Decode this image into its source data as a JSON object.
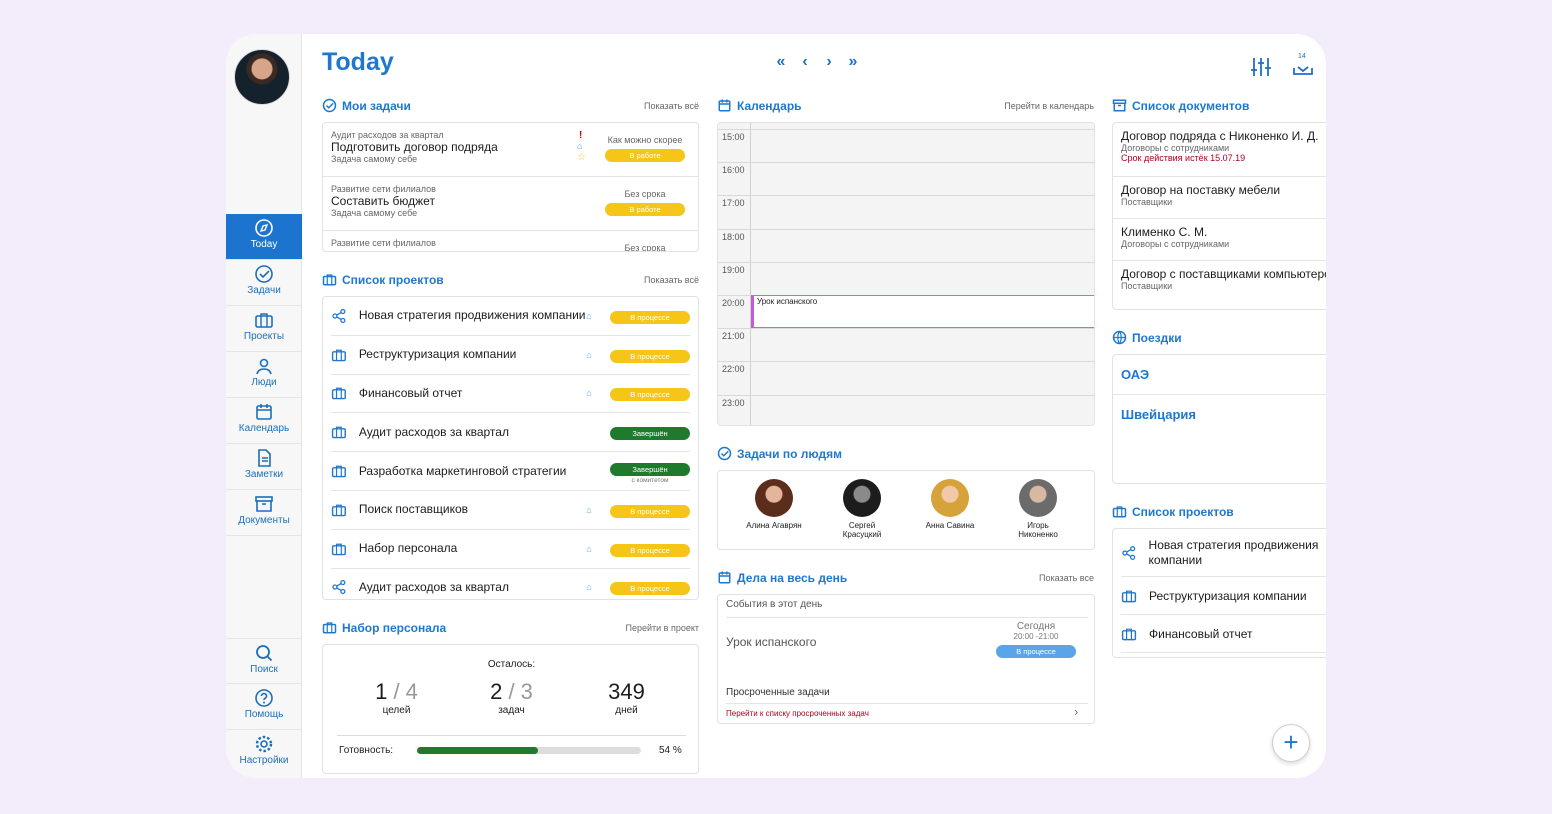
{
  "app": {
    "title": "Today"
  },
  "sidebar": {
    "items": [
      {
        "label": "Today"
      },
      {
        "label": "Задачи"
      },
      {
        "label": "Проекты"
      },
      {
        "label": "Люди"
      },
      {
        "label": "Календарь"
      },
      {
        "label": "Заметки"
      },
      {
        "label": "Документы"
      }
    ],
    "bottom": [
      {
        "label": "Поиск"
      },
      {
        "label": "Помощь"
      },
      {
        "label": "Настройки"
      }
    ]
  },
  "toolbar": {
    "download_count": "14"
  },
  "tasks": {
    "title": "Мои задачи",
    "link": "Показать всё",
    "items": [
      {
        "project": "Аудит расходов за квартал",
        "name": "Подготовить договор подряда",
        "assignee": "Задача самому себе",
        "due": "Как можно скорее",
        "status": "В работе"
      },
      {
        "project": "Развитие сети филиалов",
        "name": "Составить бюджет",
        "assignee": "Задача самому себе",
        "due": "Без срока",
        "status": "В работе"
      },
      {
        "project": "Развитие сети филиалов",
        "due": "Без срока"
      }
    ]
  },
  "projects": {
    "title": "Список проектов",
    "link": "Показать всё",
    "items": [
      {
        "name": "Новая стратегия продвижения компании",
        "status": "В процессе",
        "icon": "share-icon"
      },
      {
        "name": "Реструктуризация компании",
        "status": "В процессе",
        "icon": "briefcase-icon"
      },
      {
        "name": "Финансовый отчет",
        "status": "В процессе",
        "icon": "briefcase-icon"
      },
      {
        "name": "Аудит расходов за квартал",
        "status": "Завершён",
        "icon": "briefcase-icon"
      },
      {
        "name": "Разработка маркетинговой стратегии",
        "status": "Завершён",
        "note": "с комитетом",
        "icon": "briefcase-icon"
      },
      {
        "name": "Поиск поставщиков",
        "status": "В процессе",
        "icon": "briefcase-icon"
      },
      {
        "name": "Набор персонала",
        "status": "В процессе",
        "icon": "briefcase-icon"
      },
      {
        "name": "Аудит расходов за квартал",
        "status": "В процессе",
        "icon": "share-icon"
      }
    ]
  },
  "hiring": {
    "title": "Набор персонала",
    "link": "Перейти в проект",
    "remaining": "Осталось:",
    "goals_done": "1",
    "goals_total": "4",
    "goals_label": "целей",
    "tasks_done": "2",
    "tasks_total": "3",
    "tasks_label": "задач",
    "days": "349",
    "days_label": "дней",
    "ready_label": "Готовность:",
    "ready_pct": "54 %",
    "ready_value": 0.54
  },
  "calendar": {
    "title": "Календарь",
    "link": "Перейти в календарь",
    "hours": [
      "15:00",
      "16:00",
      "17:00",
      "18:00",
      "19:00",
      "20:00",
      "21:00",
      "22:00",
      "23:00"
    ],
    "event": "Урок испанского"
  },
  "people": {
    "title": "Задачи по людям",
    "items": [
      {
        "name": "Алина Агаврян"
      },
      {
        "name": "Сергей Красуцкий"
      },
      {
        "name": "Анна Савина"
      },
      {
        "name": "Игорь Никоненко"
      }
    ]
  },
  "allday": {
    "title": "Дела на весь день",
    "link": "Показать все",
    "events_label": "События в этот день",
    "event": "Урок испанского",
    "event_day": "Сегодня",
    "event_time": "20:00 -21:00",
    "event_status": "В процессе",
    "overdue_label": "Просроченные задачи",
    "overdue_link": "Перейти к списку просроченных задач"
  },
  "documents": {
    "title": "Список документов",
    "items": [
      {
        "name": "Договор подряда с Никоненко И. Д.",
        "type": "Договоры с сотрудниками",
        "warn": "Срок действия истёк 15.07.19"
      },
      {
        "name": "Договор на поставку мебели",
        "type": "Поставщики"
      },
      {
        "name": "Клименко С. М.",
        "type": "Договоры с сотрудниками"
      },
      {
        "name": "Договор с поставщиками компьютеров",
        "type": "Поставщики"
      }
    ]
  },
  "trips": {
    "title": "Поездки",
    "items": [
      "ОАЭ",
      "Швейцария"
    ]
  },
  "projects2": {
    "title": "Список проектов",
    "items": [
      "Новая стратегия продвижения компании",
      "Реструктуризация компании",
      "Финансовый отчет"
    ]
  },
  "colors": {
    "accent": "#1f78cd",
    "yellow": "#f5c518",
    "green": "#1f7a2d"
  }
}
